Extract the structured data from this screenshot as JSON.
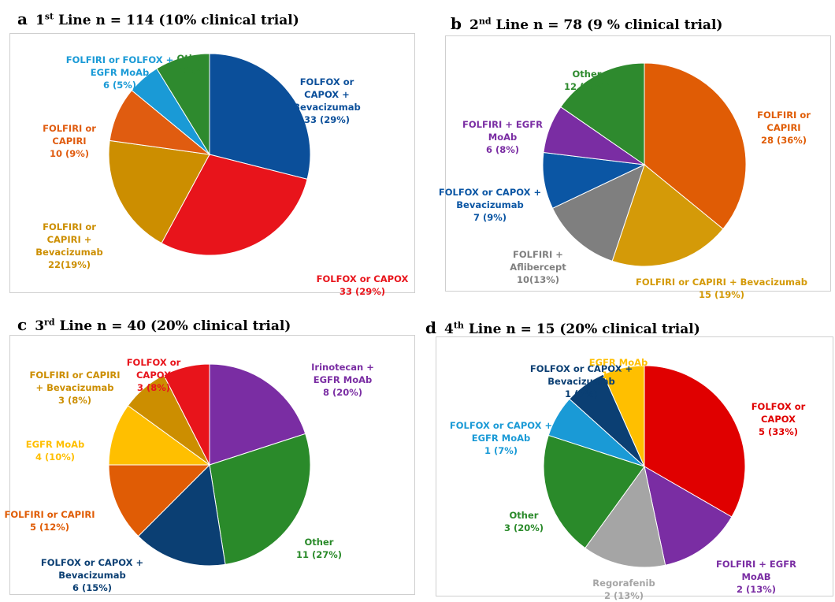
{
  "chart_data": [
    {
      "type": "pie",
      "letter": "a",
      "title_pre": "1",
      "title_sup": "st",
      "title_post": " Line n = 114 (10% clinical trial)",
      "slices": [
        {
          "label": "FOLFOX or\nCAPOX +\nBevacizumab\n33 (29%)",
          "value": 33,
          "color": "#0b4f9a"
        },
        {
          "label": "FOLFOX or CAPOX\n33 (29%)",
          "value": 33,
          "color": "#e8141b"
        },
        {
          "label": "FOLFIRI or\nCAPIRI +\nBevacizumab\n22(19%)",
          "value": 22,
          "color": "#cc8e00"
        },
        {
          "label": "FOLFIRI or\nCAPIRI\n10 (9%)",
          "value": 10,
          "color": "#e05c10"
        },
        {
          "label": "FOLFIRI or FOLFOX +\nEGFR MoAb\n6 (5%)",
          "value": 6,
          "color": "#1a9ad6"
        },
        {
          "label": "Other\n10(9%)",
          "value": 10,
          "color": "#2e8a2e"
        }
      ]
    },
    {
      "type": "pie",
      "letter": "b",
      "title_pre": "2",
      "title_sup": "nd",
      "title_post": " Line n = 78 (9 % clinical trial)",
      "slices": [
        {
          "label": "FOLFIRI or\nCAPIRI\n28 (36%)",
          "value": 28,
          "color": "#e05c05"
        },
        {
          "label": "FOLFIRI or CAPIRI + Bevacizumab\n15 (19%)",
          "value": 15,
          "color": "#d49a08"
        },
        {
          "label": "FOLFIRI +\nAflibercept\n10(13%)",
          "value": 10,
          "color": "#7f7f7f"
        },
        {
          "label": "FOLFOX or CAPOX +\nBevacizumab\n7 (9%)",
          "value": 7,
          "color": "#0b56a4"
        },
        {
          "label": "FOLFIRI + EGFR\nMoAb\n6 (8%)",
          "value": 6,
          "color": "#7a2da3"
        },
        {
          "label": "Other\n12 (15%)",
          "value": 12,
          "color": "#2e8a2e"
        }
      ]
    },
    {
      "type": "pie",
      "letter": "c",
      "title_pre": "3",
      "title_sup": "rd",
      "title_post": "  Line n = 40 (20% clinical trial)",
      "slices": [
        {
          "label": "Irinotecan +\nEGFR MoAb\n8 (20%)",
          "value": 8,
          "color": "#7a2da3"
        },
        {
          "label": "Other\n11 (27%)",
          "value": 11,
          "color": "#2a8a2a"
        },
        {
          "label": "FOLFOX or CAPOX +\nBevacizumab\n6 (15%)",
          "value": 6,
          "color": "#0b3f73"
        },
        {
          "label": "FOLFIRI or CAPIRI\n5 (12%)",
          "value": 5,
          "color": "#e05c05"
        },
        {
          "label": "EGFR MoAb\n4 (10%)",
          "value": 4,
          "color": "#ffbf00"
        },
        {
          "label": "FOLFIRI or CAPIRI\n+ Bevacizumab\n3 (8%)",
          "value": 3,
          "color": "#cc8e00"
        },
        {
          "label": "FOLFOX or\nCAPOX\n3 (8%)",
          "value": 3,
          "color": "#e8141b"
        }
      ]
    },
    {
      "type": "pie",
      "letter": "d",
      "title_pre": "4",
      "title_sup": "th",
      "title_post": "  Line n = 15 (20% clinical trial)",
      "slices": [
        {
          "label": "FOLFOX or\nCAPOX\n5 (33%)",
          "value": 5,
          "color": "#e00000"
        },
        {
          "label": "FOLFIRI + EGFR\nMoAB\n2 (13%)",
          "value": 2,
          "color": "#7a2da3"
        },
        {
          "label": "Regorafenib\n2 (13%)",
          "value": 2,
          "color": "#a5a5a5"
        },
        {
          "label": "Other\n3 (20%)",
          "value": 3,
          "color": "#2a8a2a"
        },
        {
          "label": "FOLFOX or CAPOX +\nEGFR MoAb\n1 (7%)",
          "value": 1,
          "color": "#1a9ad6"
        },
        {
          "label": "FOLFOX or CAPOX +\nBevacizumab\n1 (7%)",
          "value": 1,
          "color": "#0b3f73"
        },
        {
          "label": "EGFR MoAb\n1 (7%)",
          "value": 1,
          "color": "#ffbf00"
        }
      ]
    }
  ]
}
